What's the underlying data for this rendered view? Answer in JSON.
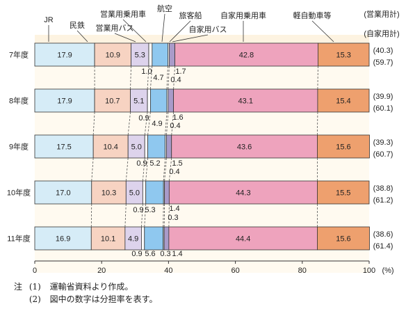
{
  "chart_data": {
    "type": "bar",
    "stacked": true,
    "orientation": "horizontal",
    "categories": [
      "7年度",
      "8年度",
      "9年度",
      "10年度",
      "11年度"
    ],
    "series": [
      {
        "name": "JR",
        "color": "#d6ecf7",
        "values": [
          17.9,
          17.9,
          17.5,
          17.0,
          16.9
        ]
      },
      {
        "name": "民鉄",
        "color": "#f7d3c2",
        "values": [
          10.9,
          10.7,
          10.4,
          10.3,
          10.1
        ]
      },
      {
        "name": "営業用バス",
        "color": "#ddd3ec",
        "values": [
          5.3,
          5.1,
          5.0,
          5.0,
          4.9
        ]
      },
      {
        "name": "営業用乗用車",
        "color": "#ffffff",
        "values": [
          1.0,
          0.9,
          0.9,
          0.9,
          0.9
        ]
      },
      {
        "name": "航空",
        "color": "#8fc8ef",
        "values": [
          4.7,
          4.9,
          5.2,
          5.3,
          5.6
        ]
      },
      {
        "name": "旅客船",
        "color": "#ffffff",
        "values": [
          0.4,
          0.4,
          0.4,
          0.3,
          0.3
        ]
      },
      {
        "name": "自家用バス",
        "color": "#a99bc9",
        "values": [
          1.7,
          1.6,
          1.5,
          1.4,
          1.4
        ]
      },
      {
        "name": "自家用乗用車",
        "color": "#eea3bd",
        "values": [
          42.8,
          43.1,
          43.6,
          44.3,
          44.4
        ]
      },
      {
        "name": "軽自動車等",
        "color": "#eea06e",
        "values": [
          15.3,
          15.4,
          15.6,
          15.5,
          15.6
        ]
      }
    ],
    "totals_header": [
      "(営業用計)",
      "(自家用計)"
    ],
    "totals_business": [
      "(40.3)",
      "(39.9)",
      "(39.3)",
      "(38.8)",
      "(38.6)"
    ],
    "totals_private": [
      "(59.7)",
      "(60.1)",
      "(60.7)",
      "(61.2)",
      "(61.4)"
    ],
    "xlim": [
      0,
      100
    ],
    "x_ticks": [
      "0",
      "20",
      "40",
      "60",
      "80",
      "100"
    ],
    "x_unit": "(%)",
    "background": "#fdf3e1",
    "grid": false,
    "legend": "top"
  },
  "notes": [
    {
      "mark": "注",
      "num": "(1)",
      "text": "運輸省資料より作成。"
    },
    {
      "mark": "",
      "num": "(2)",
      "text": "図中の数字は分担率を表す。"
    }
  ]
}
